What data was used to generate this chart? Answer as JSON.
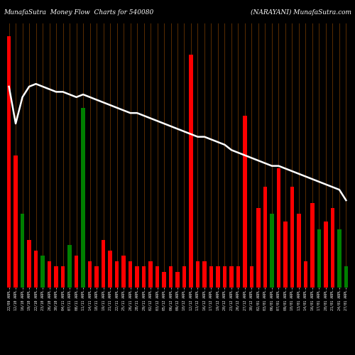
{
  "title_left": "MunafaSutra  Money Flow  Charts for 540080",
  "title_right": "(NARAYANI) MunafaSutra.com",
  "background_color": "#000000",
  "bar_grid_color": "#5a2d00",
  "line_color": "#ffffff",
  "categories": [
    "22/09 ARPL",
    "12/10 ARPL",
    "16/10 ARPL",
    "19/10 ARPL",
    "22/10 ARPL",
    "23/10 ARPL",
    "26/10 ARPL",
    "30/10 ARPL",
    "04/11 ARPL",
    "07/11 ARPL",
    "08/11 ARPL",
    "11/11 ARPL",
    "14/11 ARPL",
    "18/11 ARPL",
    "19/11 ARPL",
    "21/11 ARPL",
    "22/11 ARPL",
    "25/11 ARPL",
    "26/11 ARPL",
    "28/11 ARPL",
    "29/11 ARPL",
    "02/12 ARPL",
    "03/12 ARPL",
    "05/12 ARPL",
    "06/12 ARPL",
    "09/12 ARPL",
    "10/12 ARPL",
    "12/12 ARPL",
    "13/12 ARPL",
    "16/12 ARPL",
    "17/12 ARPL",
    "19/12 ARPL",
    "20/12 ARPL",
    "23/12 ARPL",
    "26/12 ARPL",
    "27/12 ARPL",
    "30/12 ARPL",
    "02/01 ARPL",
    "03/01 ARPL",
    "06/01 ARPL",
    "07/01 ARPL",
    "09/01 ARPL",
    "10/01 ARPL",
    "13/01 ARPL",
    "14/01 ARPL",
    "16/01 ARPL",
    "17/01 ARPL",
    "20/01 ARPL",
    "21/01 ARPL",
    "24/01 ARPL",
    "27/01 ARPL"
  ],
  "bar_heights": [
    95,
    50,
    28,
    18,
    14,
    12,
    10,
    8,
    8,
    16,
    12,
    68,
    10,
    8,
    18,
    14,
    10,
    12,
    10,
    8,
    8,
    10,
    8,
    6,
    8,
    6,
    8,
    88,
    10,
    10,
    8,
    8,
    8,
    8,
    8,
    65,
    8,
    30,
    38,
    28,
    45,
    25,
    38,
    28,
    10,
    32,
    22,
    25,
    30,
    22,
    8
  ],
  "bar_colors": [
    "red",
    "red",
    "green",
    "red",
    "red",
    "green",
    "red",
    "red",
    "red",
    "green",
    "red",
    "green",
    "red",
    "red",
    "red",
    "red",
    "red",
    "red",
    "red",
    "red",
    "red",
    "red",
    "red",
    "red",
    "red",
    "red",
    "red",
    "red",
    "red",
    "red",
    "red",
    "red",
    "red",
    "red",
    "red",
    "red",
    "red",
    "red",
    "red",
    "green",
    "red",
    "red",
    "red",
    "red",
    "red",
    "red",
    "green",
    "red",
    "red",
    "green",
    "green"
  ],
  "line_values": [
    76,
    62,
    72,
    76,
    77,
    76,
    75,
    74,
    74,
    73,
    72,
    73,
    72,
    71,
    70,
    69,
    68,
    67,
    66,
    66,
    65,
    64,
    63,
    62,
    61,
    60,
    59,
    58,
    57,
    57,
    56,
    55,
    54,
    52,
    51,
    50,
    49,
    48,
    47,
    46,
    46,
    45,
    44,
    43,
    42,
    41,
    40,
    39,
    38,
    37,
    33
  ],
  "ylim_max": 100,
  "title_fontsize": 6.5
}
